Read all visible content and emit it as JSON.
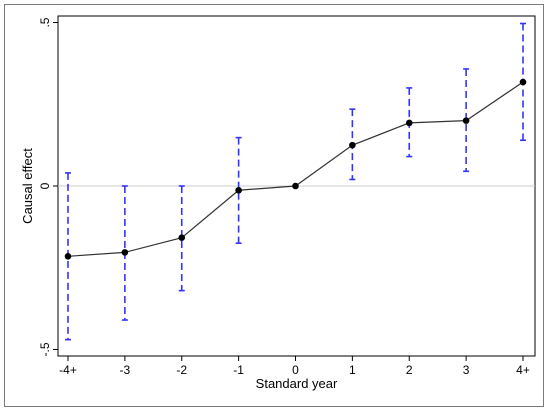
{
  "chart_data": {
    "type": "line",
    "xlabel": "Standard year",
    "ylabel": "Causal effect",
    "categories": [
      "-4+",
      "-3",
      "-2",
      "-1",
      "0",
      "1",
      "2",
      "3",
      "4+"
    ],
    "series": [
      {
        "values": [
          -0.215,
          -0.203,
          -0.158,
          -0.013,
          0.0,
          0.125,
          0.193,
          0.2,
          0.318
        ],
        "ci_low": [
          -0.47,
          -0.41,
          -0.32,
          -0.175,
          0.0,
          0.02,
          0.09,
          0.045,
          0.14
        ],
        "ci_high": [
          0.04,
          0.0,
          0.0,
          0.148,
          0.0,
          0.235,
          0.3,
          0.358,
          0.497
        ]
      }
    ],
    "yticks": [
      -0.5,
      0,
      0.5
    ],
    "ytick_labels": [
      "-.5",
      "0",
      ".5"
    ],
    "ylim": [
      -0.52,
      0.52
    ],
    "reference_line_y": 0,
    "grid": false,
    "legend": "none",
    "colors": {
      "line": "#333333",
      "marker": "#000000",
      "error_bar": "#3333ff",
      "reference": "#cccccc"
    }
  }
}
